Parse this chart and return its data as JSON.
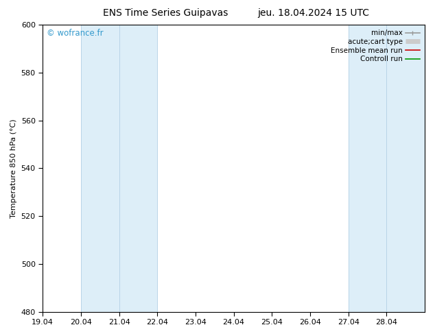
{
  "title_left": "ENS Time Series Guipavas",
  "title_right": "jeu. 18.04.2024 15 UTC",
  "ylabel": "Temperature 850 hPa (°C)",
  "ylim": [
    480,
    600
  ],
  "yticks": [
    480,
    500,
    520,
    540,
    560,
    580,
    600
  ],
  "xtick_labels": [
    "19.04",
    "20.04",
    "21.04",
    "22.04",
    "23.04",
    "24.04",
    "25.04",
    "26.04",
    "27.04",
    "28.04"
  ],
  "xtick_positions": [
    0,
    1,
    2,
    3,
    4,
    5,
    6,
    7,
    8,
    9
  ],
  "xlim": [
    0,
    10
  ],
  "shaded_bands": [
    {
      "xmin": 1,
      "xmax": 3,
      "color": "#ddeef8",
      "edgecolor": "#b8d4e8"
    },
    {
      "xmin": 8,
      "xmax": 9,
      "color": "#ddeef8",
      "edgecolor": "#b8d4e8"
    },
    {
      "xmin": 9,
      "xmax": 10,
      "color": "#ddeef8",
      "edgecolor": "#b8d4e8"
    }
  ],
  "inner_lines": [
    2
  ],
  "watermark": "© wofrance.fr",
  "watermark_color": "#3399cc",
  "legend_items": [
    {
      "label": "min/max",
      "color": "#999999",
      "lw": 1.2,
      "style": "minmax"
    },
    {
      "label": "acute;cart type",
      "color": "#cccccc",
      "lw": 5,
      "style": "thick"
    },
    {
      "label": "Ensemble mean run",
      "color": "#cc0000",
      "lw": 1.2,
      "style": "line"
    },
    {
      "label": "Controll run",
      "color": "#009900",
      "lw": 1.2,
      "style": "line"
    }
  ],
  "bg_color": "#ffffff",
  "plot_bg_color": "#ffffff",
  "title_fontsize": 10,
  "tick_fontsize": 8,
  "ylabel_fontsize": 8,
  "legend_fontsize": 7.5
}
